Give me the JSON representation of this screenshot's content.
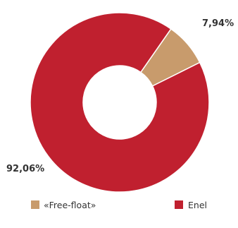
{
  "chart_data": {
    "type": "pie",
    "title": "",
    "slices": [
      {
        "name": "«Free-float»",
        "value": 7.94,
        "label": "7,94%",
        "color": "#c89b6c"
      },
      {
        "name": "Enel",
        "value": 92.06,
        "label": "92,06%",
        "color": "#c0202f"
      }
    ],
    "donut": true,
    "legend_position": "bottom"
  }
}
